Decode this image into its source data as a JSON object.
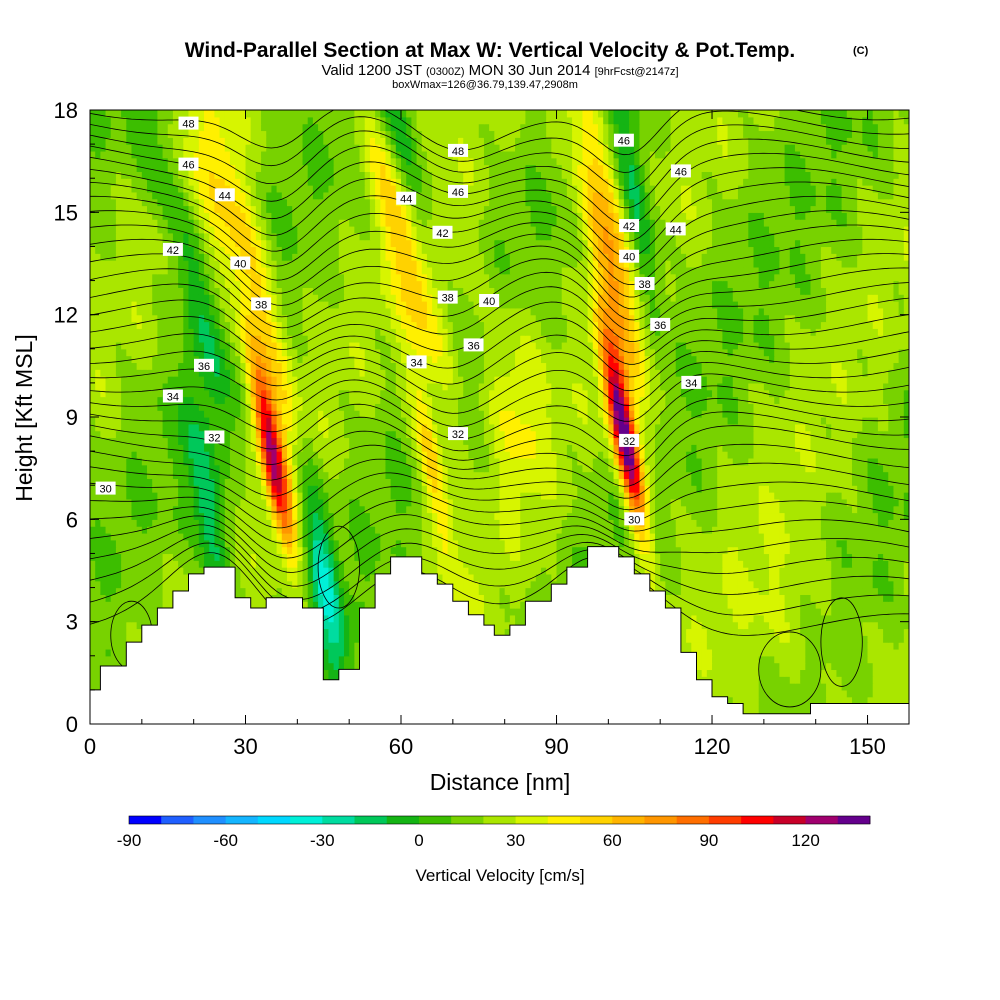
{
  "chart_data": {
    "type": "contour-cross-section",
    "title": "Wind-Parallel Section at Max W: Vertical Velocity & Pot.Temp.",
    "title_mark": "(C)",
    "subtitle_parts": [
      "Valid 1200 JST",
      "(0300Z)",
      "MON 30 Jun 2014",
      "[9hrFcst@2147z]"
    ],
    "subtitle2": "boxWmax=126@36.79,139.47,2908m",
    "xlabel": "Distance [nm]",
    "ylabel": "Height [Kft MSL]",
    "xlim": [
      0,
      158
    ],
    "ylim": [
      0,
      18
    ],
    "x_ticks": [
      0,
      30,
      60,
      90,
      120,
      150
    ],
    "y_ticks": [
      0,
      3,
      6,
      9,
      12,
      15,
      18
    ],
    "colorbar": {
      "title": "Vertical Velocity [cm/s]",
      "ticks": [
        -90,
        -60,
        -30,
        0,
        30,
        60,
        90,
        120
      ],
      "min": -90,
      "max": 130,
      "step": 10,
      "colors": [
        "#0000ff",
        "#1f5fff",
        "#1f8fff",
        "#14b5ff",
        "#00d8ff",
        "#00f0d8",
        "#00dca0",
        "#00c85a",
        "#14b414",
        "#3cbe00",
        "#78d200",
        "#aae600",
        "#d7f500",
        "#fff000",
        "#ffd200",
        "#ffb400",
        "#ff9600",
        "#ff6e00",
        "#ff3c00",
        "#ff0000",
        "#c80028",
        "#a0006e",
        "#64008c"
      ]
    },
    "terrain_kft": [
      [
        0,
        1.0
      ],
      [
        2,
        1.0
      ],
      [
        2,
        1.7
      ],
      [
        7,
        1.7
      ],
      [
        7,
        2.4
      ],
      [
        10,
        2.4
      ],
      [
        10,
        2.9
      ],
      [
        13,
        2.9
      ],
      [
        13,
        3.4
      ],
      [
        16,
        3.4
      ],
      [
        16,
        3.9
      ],
      [
        19,
        3.9
      ],
      [
        19,
        4.4
      ],
      [
        22,
        4.4
      ],
      [
        22,
        4.6
      ],
      [
        28,
        4.6
      ],
      [
        28,
        3.7
      ],
      [
        31,
        3.7
      ],
      [
        31,
        3.4
      ],
      [
        34,
        3.4
      ],
      [
        34,
        3.7
      ],
      [
        41,
        3.7
      ],
      [
        41,
        3.4
      ],
      [
        45,
        3.4
      ],
      [
        45,
        1.3
      ],
      [
        48,
        1.3
      ],
      [
        48,
        1.6
      ],
      [
        52,
        1.6
      ],
      [
        52,
        3.4
      ],
      [
        55,
        3.4
      ],
      [
        55,
        4.4
      ],
      [
        58,
        4.4
      ],
      [
        58,
        4.9
      ],
      [
        64,
        4.9
      ],
      [
        64,
        4.4
      ],
      [
        67,
        4.4
      ],
      [
        67,
        4.1
      ],
      [
        70,
        4.1
      ],
      [
        70,
        3.6
      ],
      [
        73,
        3.6
      ],
      [
        73,
        3.2
      ],
      [
        76,
        3.2
      ],
      [
        76,
        2.9
      ],
      [
        78,
        2.9
      ],
      [
        78,
        2.6
      ],
      [
        81,
        2.6
      ],
      [
        81,
        2.9
      ],
      [
        84,
        2.9
      ],
      [
        84,
        3.6
      ],
      [
        89,
        3.6
      ],
      [
        89,
        4.1
      ],
      [
        92,
        4.1
      ],
      [
        92,
        4.6
      ],
      [
        96,
        4.6
      ],
      [
        96,
        5.2
      ],
      [
        102,
        5.2
      ],
      [
        102,
        4.9
      ],
      [
        105,
        4.9
      ],
      [
        105,
        4.4
      ],
      [
        108,
        4.4
      ],
      [
        108,
        3.9
      ],
      [
        111,
        3.9
      ],
      [
        111,
        3.4
      ],
      [
        114,
        3.4
      ],
      [
        114,
        2.1
      ],
      [
        117,
        2.1
      ],
      [
        117,
        1.3
      ],
      [
        120,
        1.3
      ],
      [
        120,
        0.8
      ],
      [
        123,
        0.8
      ],
      [
        123,
        0.6
      ],
      [
        126,
        0.6
      ],
      [
        126,
        0.3
      ],
      [
        139,
        0.3
      ],
      [
        139,
        0.6
      ],
      [
        158,
        0.6
      ]
    ],
    "updraft_cores": [
      {
        "x": 35,
        "y": 8.0,
        "peak_cms": 100
      },
      {
        "x": 66,
        "y": 7.5,
        "peak_cms": 45
      },
      {
        "x": 103,
        "y": 8.5,
        "peak_cms": 126
      }
    ],
    "downdraft_cores": [
      {
        "x": 23,
        "y": 6.0,
        "min_cms": -40
      },
      {
        "x": 45,
        "y": 4.5,
        "min_cms": -45
      },
      {
        "x": 106,
        "y": 14.5,
        "min_cms": -40
      }
    ],
    "isentrope_labels": [
      {
        "value": "30",
        "x": 3,
        "y": 6.9
      },
      {
        "value": "32",
        "x": 24,
        "y": 8.4
      },
      {
        "value": "34",
        "x": 16,
        "y": 9.6
      },
      {
        "value": "36",
        "x": 22,
        "y": 10.5
      },
      {
        "value": "38",
        "x": 33,
        "y": 12.3
      },
      {
        "value": "40",
        "x": 29,
        "y": 13.5
      },
      {
        "value": "42",
        "x": 16,
        "y": 13.9
      },
      {
        "value": "44",
        "x": 26,
        "y": 15.5
      },
      {
        "value": "46",
        "x": 19,
        "y": 16.4
      },
      {
        "value": "48",
        "x": 19,
        "y": 17.6
      },
      {
        "value": "34",
        "x": 63,
        "y": 10.6
      },
      {
        "value": "32",
        "x": 71,
        "y": 8.5
      },
      {
        "value": "36",
        "x": 74,
        "y": 11.1
      },
      {
        "value": "38",
        "x": 69,
        "y": 12.5
      },
      {
        "value": "40",
        "x": 77,
        "y": 12.4
      },
      {
        "value": "42",
        "x": 68,
        "y": 14.4
      },
      {
        "value": "44",
        "x": 61,
        "y": 15.4
      },
      {
        "value": "46",
        "x": 71,
        "y": 15.6
      },
      {
        "value": "48",
        "x": 71,
        "y": 16.8
      },
      {
        "value": "30",
        "x": 105,
        "y": 6.0
      },
      {
        "value": "32",
        "x": 104,
        "y": 8.3
      },
      {
        "value": "34",
        "x": 116,
        "y": 10.0
      },
      {
        "value": "36",
        "x": 110,
        "y": 11.7
      },
      {
        "value": "38",
        "x": 107,
        "y": 12.9
      },
      {
        "value": "40",
        "x": 104,
        "y": 13.7
      },
      {
        "value": "42",
        "x": 104,
        "y": 14.6
      },
      {
        "value": "44",
        "x": 113,
        "y": 14.5
      },
      {
        "value": "46",
        "x": 114,
        "y": 16.2
      },
      {
        "value": "46",
        "x": 103,
        "y": 17.1
      }
    ]
  }
}
